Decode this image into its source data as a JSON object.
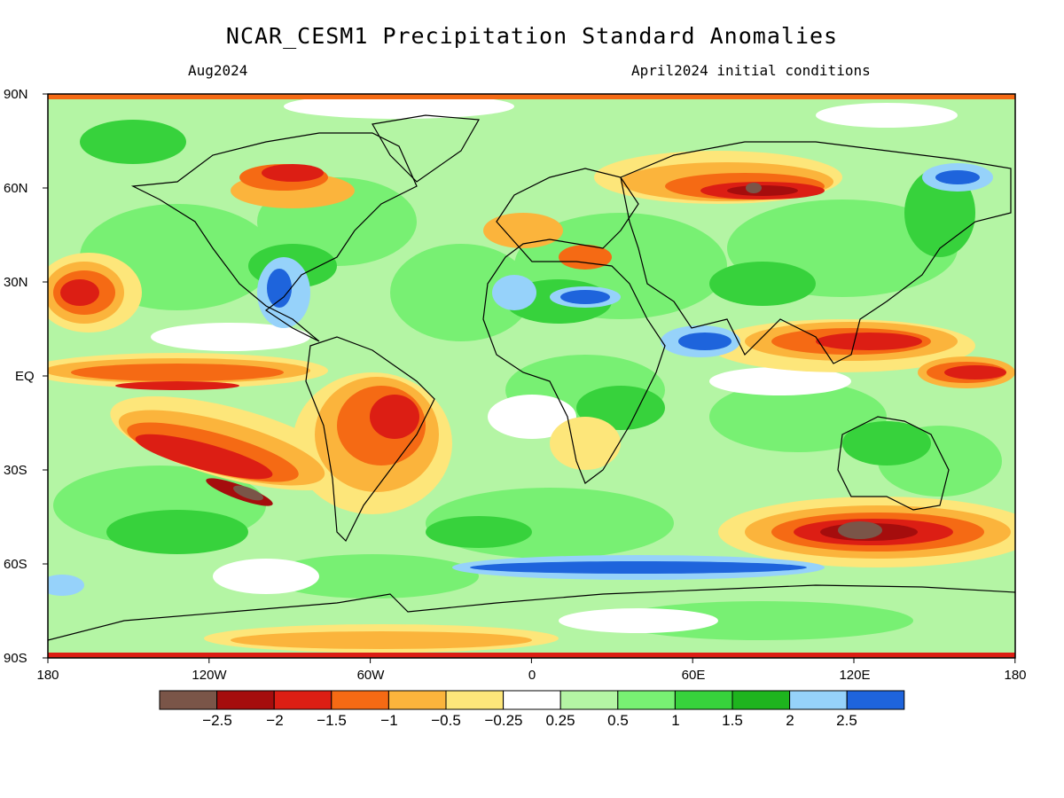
{
  "header": {
    "title": "NCAR_CESM1 Precipitation Standard Anomalies",
    "valid_month": "Aug2024",
    "init_conditions": "April2024 initial conditions"
  },
  "map": {
    "lat_labels": [
      "90N",
      "60N",
      "30N",
      "EQ",
      "30S",
      "60S",
      "90S"
    ],
    "lon_labels": [
      "180",
      "120W",
      "60W",
      "0",
      "60E",
      "120E",
      "180"
    ]
  },
  "legend": {
    "labels": [
      "−2.5",
      "−2",
      "−1.5",
      "−1",
      "−0.5",
      "−0.25",
      "0.25",
      "0.5",
      "1",
      "1.5",
      "2",
      "2.5"
    ],
    "colors": [
      "#7a5548",
      "#a50d0d",
      "#dc1e14",
      "#f56a14",
      "#fbb43c",
      "#fde67a",
      "#ffffff",
      "#b4f5a4",
      "#78f073",
      "#37d23c",
      "#1eb41e",
      "#96d2fa",
      "#1e64dc"
    ]
  }
}
